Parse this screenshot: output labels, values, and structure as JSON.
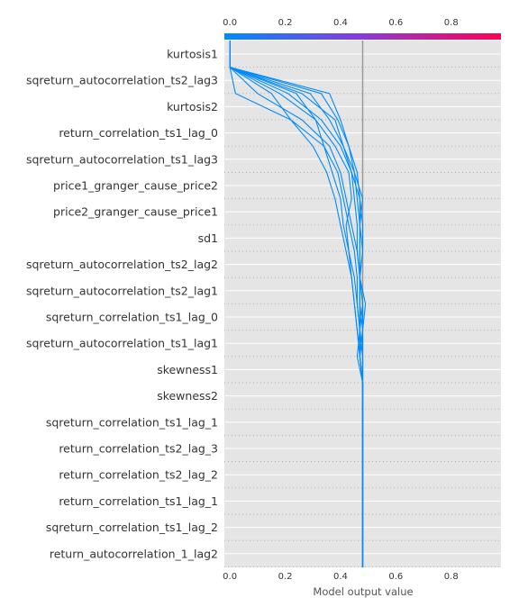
{
  "chart_data": {
    "type": "decision",
    "xlabel": "Model output value",
    "xlim": [
      -0.02,
      0.98
    ],
    "x_ticks": [
      "0.0",
      "0.2",
      "0.4",
      "0.6",
      "0.8"
    ],
    "x_tick_values": [
      0.0,
      0.2,
      0.4,
      0.6,
      0.8
    ],
    "base_value": 0.48,
    "colorbar": {
      "from": "#008bfb",
      "mid": "#8a3bd6",
      "to": "#ff0052"
    },
    "line_color": "#008bfb",
    "features": [
      "kurtosis1",
      "sqreturn_autocorrelation_ts2_lag3",
      "kurtosis2",
      "return_correlation_ts1_lag_0",
      "sqreturn_autocorrelation_ts1_lag3",
      "price1_granger_cause_price2",
      "price2_granger_cause_price1",
      "sd1",
      "sqreturn_autocorrelation_ts2_lag2",
      "sqreturn_autocorrelation_ts2_lag1",
      "sqreturn_correlation_ts1_lag_0",
      "sqreturn_autocorrelation_ts1_lag1",
      "skewness1",
      "skewness2",
      "sqreturn_correlation_ts1_lag_1",
      "return_correlation_ts2_lag_3",
      "return_correlation_ts2_lag_2",
      "return_correlation_ts1_lag_1",
      "sqreturn_correlation_ts1_lag_2",
      "return_autocorrelation_1_lag2"
    ],
    "series": [
      {
        "values": [
          0.48,
          0.48,
          0.48,
          0.48,
          0.48,
          0.48,
          0.48,
          0.48,
          0.48,
          0.47,
          0.48,
          0.47,
          0.47,
          0.47,
          0.46,
          0.45,
          0.41,
          0.38,
          0.26,
          0.0
        ]
      },
      {
        "values": [
          0.48,
          0.48,
          0.48,
          0.48,
          0.48,
          0.48,
          0.48,
          0.48,
          0.47,
          0.48,
          0.49,
          0.47,
          0.48,
          0.47,
          0.47,
          0.46,
          0.43,
          0.4,
          0.36,
          0.0
        ]
      },
      {
        "values": [
          0.48,
          0.48,
          0.48,
          0.48,
          0.48,
          0.48,
          0.48,
          0.48,
          0.47,
          0.47,
          0.47,
          0.47,
          0.46,
          0.44,
          0.42,
          0.4,
          0.36,
          0.26,
          0.1,
          0.0
        ]
      },
      {
        "values": [
          0.48,
          0.48,
          0.48,
          0.48,
          0.48,
          0.48,
          0.48,
          0.48,
          0.46,
          0.47,
          0.46,
          0.46,
          0.45,
          0.43,
          0.41,
          0.39,
          0.34,
          0.22,
          0.02,
          0.0
        ]
      },
      {
        "values": [
          0.48,
          0.48,
          0.48,
          0.48,
          0.48,
          0.48,
          0.48,
          0.48,
          0.47,
          0.46,
          0.45,
          0.44,
          0.43,
          0.42,
          0.44,
          0.43,
          0.38,
          0.31,
          0.18,
          0.0
        ]
      },
      {
        "values": [
          0.48,
          0.48,
          0.48,
          0.48,
          0.48,
          0.48,
          0.48,
          0.48,
          0.48,
          0.47,
          0.47,
          0.47,
          0.46,
          0.46,
          0.45,
          0.44,
          0.4,
          0.33,
          0.21,
          0.0
        ]
      },
      {
        "values": [
          0.48,
          0.48,
          0.48,
          0.48,
          0.48,
          0.48,
          0.48,
          0.48,
          0.47,
          0.48,
          0.48,
          0.47,
          0.48,
          0.48,
          0.47,
          0.44,
          0.41,
          0.36,
          0.29,
          0.0
        ]
      },
      {
        "values": [
          0.48,
          0.48,
          0.48,
          0.48,
          0.48,
          0.48,
          0.48,
          0.48,
          0.48,
          0.48,
          0.47,
          0.47,
          0.47,
          0.47,
          0.48,
          0.45,
          0.43,
          0.39,
          0.33,
          0.0
        ]
      },
      {
        "values": [
          0.48,
          0.48,
          0.48,
          0.48,
          0.48,
          0.48,
          0.48,
          0.48,
          0.47,
          0.47,
          0.46,
          0.45,
          0.43,
          0.41,
          0.4,
          0.37,
          0.34,
          0.31,
          0.24,
          0.0
        ]
      },
      {
        "values": [
          0.48,
          0.48,
          0.48,
          0.48,
          0.48,
          0.48,
          0.48,
          0.48,
          0.47,
          0.46,
          0.45,
          0.44,
          0.42,
          0.4,
          0.38,
          0.35,
          0.3,
          0.22,
          0.15,
          0.0
        ]
      }
    ]
  }
}
